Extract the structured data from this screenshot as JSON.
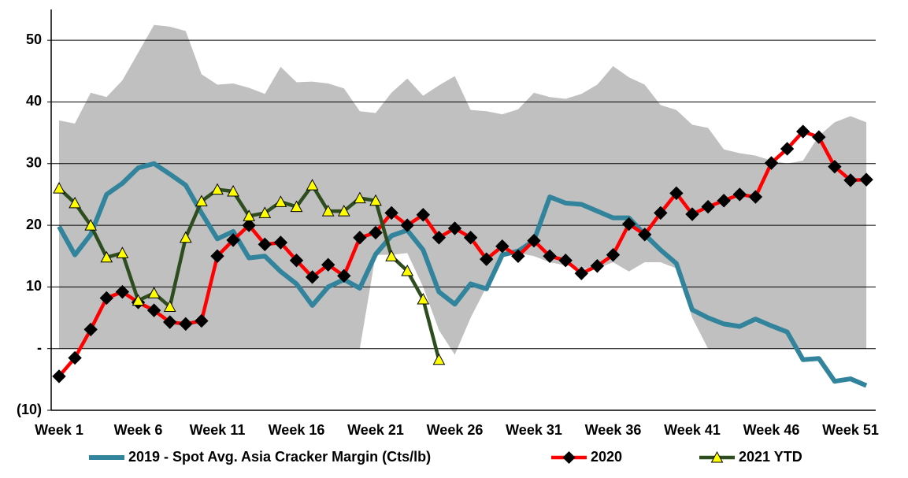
{
  "chart_data": {
    "type": "line",
    "categories": [
      "Week 1",
      null,
      null,
      null,
      null,
      "Week 6",
      null,
      null,
      null,
      null,
      "Week 11",
      null,
      null,
      null,
      null,
      "Week 16",
      null,
      null,
      null,
      null,
      "Week 21",
      null,
      null,
      null,
      null,
      "Week 26",
      null,
      null,
      null,
      null,
      "Week 31",
      null,
      null,
      null,
      null,
      "Week 36",
      null,
      null,
      null,
      null,
      "Week 41",
      null,
      null,
      null,
      null,
      "Week 46",
      null,
      null,
      null,
      null,
      "Week 51",
      null
    ],
    "range": {
      "color": "#c0c0c0",
      "upper": [
        37,
        36.5,
        41.5,
        40.8,
        43.5,
        48,
        52.5,
        52.2,
        51.5,
        44.5,
        42.8,
        43,
        42.3,
        41.3,
        45.7,
        43.2,
        43.3,
        43,
        42.2,
        38.5,
        38.2,
        41.5,
        43.8,
        41,
        42.7,
        44.2,
        38.7,
        38.5,
        38,
        38.8,
        41.5,
        40.8,
        40.5,
        41.3,
        42.8,
        45.8,
        44,
        42.8,
        39.5,
        38.7,
        36.3,
        35.8,
        32.3,
        31.7,
        31.3,
        30.5,
        30,
        30.5,
        34.5,
        36.7,
        37.7,
        36.7
      ],
      "lower": [
        0,
        0,
        0,
        0,
        0,
        0,
        0,
        0,
        0,
        0,
        0,
        0,
        0,
        0,
        0,
        0,
        0,
        0,
        0,
        0,
        15.2,
        15.2,
        15.5,
        10,
        3,
        -1,
        5,
        10,
        15,
        15.5,
        15,
        14,
        13.5,
        13,
        13,
        14,
        12.5,
        14,
        14,
        13,
        5,
        0,
        0,
        0,
        0,
        0,
        0,
        0,
        0,
        0,
        0,
        0
      ]
    },
    "series": [
      {
        "name": "2019 - Spot Avg. Asia Cracker Margin (Cts/lb)",
        "color": "#31849b",
        "marker": "none",
        "values": [
          19.8,
          15.2,
          18.5,
          25,
          26.8,
          29.3,
          30,
          28.3,
          26.5,
          22,
          17.8,
          19,
          14.7,
          15,
          12.5,
          10.5,
          7,
          10,
          11.2,
          9.8,
          15.3,
          18.3,
          19.2,
          16,
          9.2,
          7.2,
          10.5,
          9.7,
          15.2,
          15.8,
          17.5,
          24.6,
          23.6,
          23.4,
          22.3,
          21.2,
          21.2,
          18.5,
          16,
          13.8,
          6.3,
          5,
          4,
          3.6,
          4.8,
          3.7,
          2.7,
          -1.8,
          -1.6,
          -5.3,
          -4.9,
          -6
        ]
      },
      {
        "name": "2020",
        "color": "#ff0000",
        "marker": "diamond",
        "marker_color": "#000000",
        "values": [
          -4.5,
          -1.5,
          3.1,
          8.2,
          9.2,
          7.5,
          6.2,
          4.3,
          4,
          4.5,
          15,
          17.6,
          20,
          16.9,
          17.2,
          14.3,
          11.6,
          13.6,
          11.8,
          18,
          18.8,
          22,
          20,
          21.7,
          18,
          19.5,
          18,
          14.5,
          16.6,
          15,
          17.5,
          15,
          14.3,
          12.2,
          13.4,
          15.2,
          20.2,
          18.5,
          22,
          25.2,
          21.8,
          23,
          24,
          25,
          24.6,
          30.1,
          32.4,
          35.2,
          34.3,
          29.5,
          27.3,
          27.4
        ]
      },
      {
        "name": "2021 YTD",
        "color": "#2e4d1f",
        "marker": "triangle",
        "marker_color": "#ffff00",
        "values": [
          26,
          23.6,
          20,
          14.8,
          15.5,
          7.8,
          9,
          6.8,
          18,
          23.9,
          25.8,
          25.5,
          21.5,
          22,
          23.8,
          23,
          26.5,
          22.3,
          22.3,
          24.4,
          24,
          15,
          12.6,
          8,
          -1.8,
          null,
          null,
          null,
          null,
          null,
          null,
          null,
          null,
          null,
          null,
          null,
          null,
          null,
          null,
          null,
          null,
          null,
          null,
          null,
          null,
          null,
          null,
          null,
          null,
          null,
          null,
          null
        ]
      }
    ],
    "ylim": [
      -10,
      55
    ],
    "yticks": [
      {
        "value": -10,
        "label": "(10)"
      },
      {
        "value": 0,
        "label": "-"
      },
      10,
      20,
      30,
      40,
      50
    ],
    "grid": true,
    "legend": "bottom"
  }
}
